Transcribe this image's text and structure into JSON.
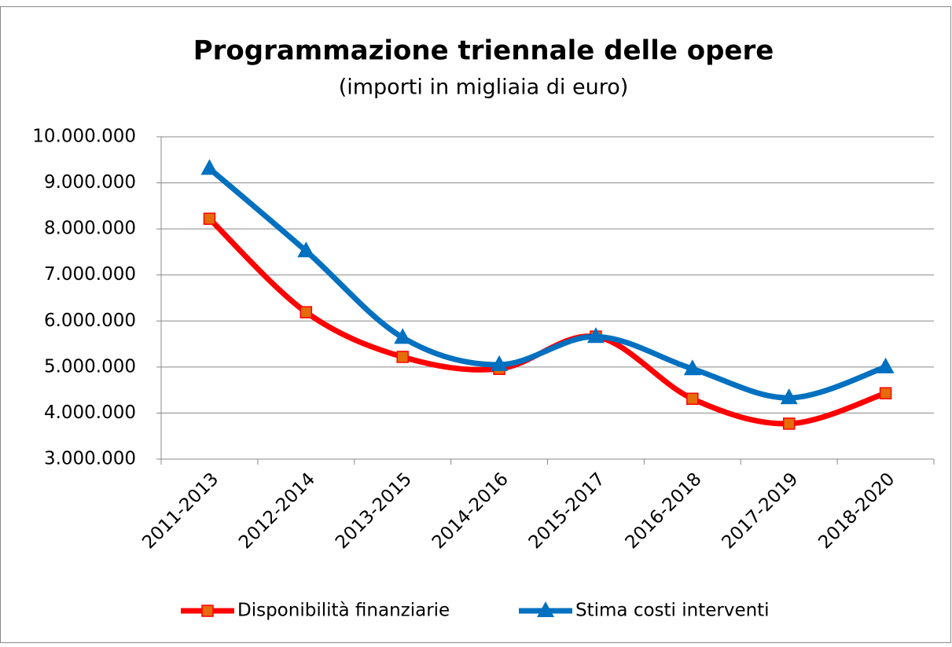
{
  "chart_data": {
    "type": "line",
    "title": "Programmazione triennale delle opere",
    "subtitle": "(importi in migliaia di euro)",
    "categories": [
      "2011-2013",
      "2012-2014",
      "2013-2015",
      "2014-2016",
      "2015-2017",
      "2016-2018",
      "2017-2019",
      "2018-2020"
    ],
    "series": [
      {
        "name": "Disponibilità finanziarie",
        "color": "#ff0000",
        "marker_color": "#e46c0a",
        "marker": "square",
        "values": [
          8220000,
          6190000,
          5220000,
          4960000,
          5660000,
          4310000,
          3770000,
          4430000
        ]
      },
      {
        "name": "Stima costi interventi",
        "color": "#0070c0",
        "marker_color": "#0070c0",
        "marker": "triangle",
        "values": [
          9310000,
          7520000,
          5640000,
          5050000,
          5660000,
          4960000,
          4330000,
          5000000
        ]
      }
    ],
    "ylim": [
      3000000,
      10000000
    ],
    "yticks": [
      {
        "value": 3000000,
        "label": "3.000.000"
      },
      {
        "value": 4000000,
        "label": "4.000.000"
      },
      {
        "value": 5000000,
        "label": "5.000.000"
      },
      {
        "value": 6000000,
        "label": "6.000.000"
      },
      {
        "value": 7000000,
        "label": "7.000.000"
      },
      {
        "value": 8000000,
        "label": "8.000.000"
      },
      {
        "value": 9000000,
        "label": "9.000.000"
      },
      {
        "value": 10000000,
        "label": "10.000.000"
      }
    ],
    "grid": true,
    "smooth": true,
    "legend": "bottom"
  }
}
